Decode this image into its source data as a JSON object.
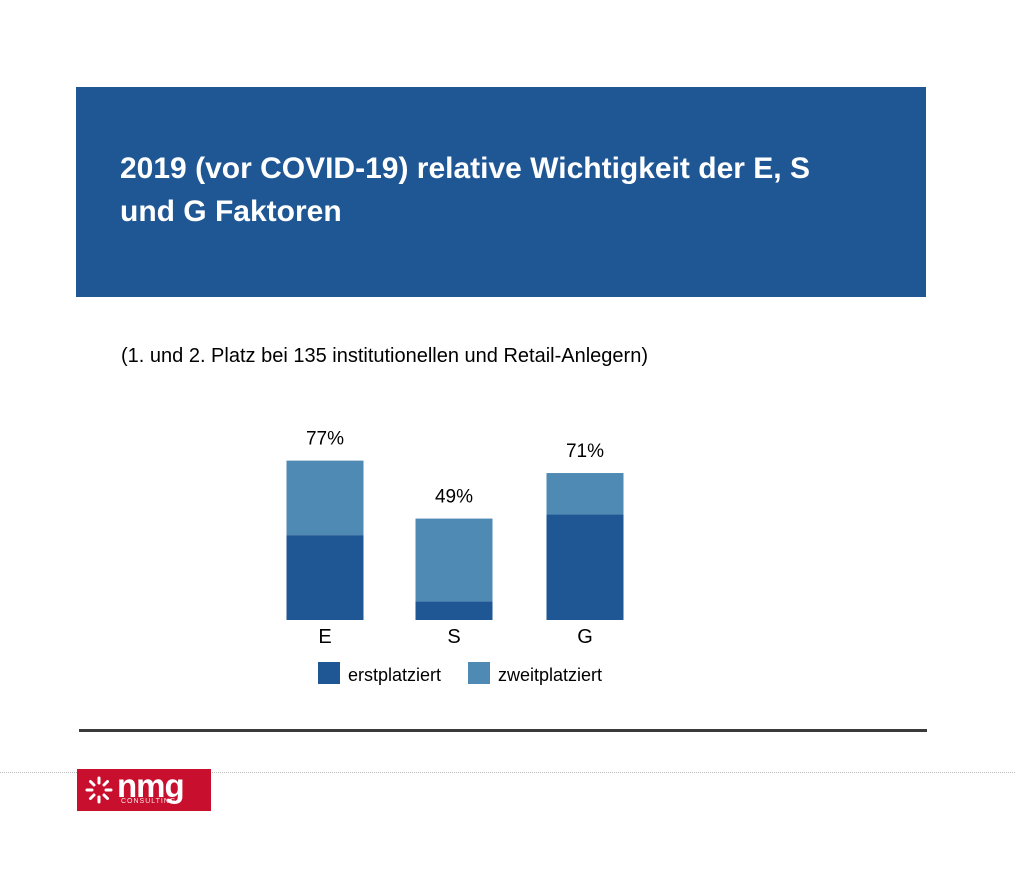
{
  "header": {
    "title": "2019 (vor COVID-19) relative Wichtigkeit der E, S und G Faktoren"
  },
  "subtitle": "(1. und 2. Platz bei 135 institutionellen und Retail-Anlegern)",
  "colors": {
    "header_bg": "#1f5795",
    "erstplatziert": "#1f5795",
    "zweitplatziert": "#4f8ab4",
    "logo_bg": "#c8102e"
  },
  "chart_data": {
    "type": "bar",
    "stacked": true,
    "categories": [
      "E",
      "S",
      "G"
    ],
    "series": [
      {
        "name": "erstplatziert",
        "values": [
          41,
          9,
          51
        ]
      },
      {
        "name": "zweitplatziert",
        "values": [
          36,
          40,
          20
        ]
      }
    ],
    "totals": [
      77,
      49,
      71
    ],
    "total_labels": [
      "77%",
      "49%",
      "71%"
    ],
    "legend_position": "bottom",
    "grid": false
  },
  "logo": {
    "name": "nmg",
    "sub": "CONSULTING"
  }
}
